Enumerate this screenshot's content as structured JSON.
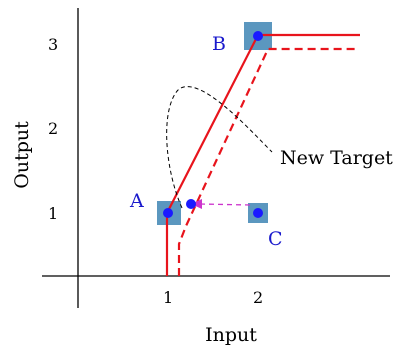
{
  "diagram": {
    "x_axis": {
      "label": "Input",
      "ticks": [
        "1",
        "2"
      ]
    },
    "y_axis": {
      "label": "Output",
      "ticks": [
        "1",
        "2",
        "3"
      ]
    },
    "points": [
      {
        "label": "A",
        "x": 1.0,
        "y": 1.0
      },
      {
        "label": "B",
        "x": 2.0,
        "y": 3.0
      },
      {
        "label": "C",
        "x": 2.0,
        "y": 1.0
      }
    ],
    "annotation": "New Target",
    "colors": {
      "curve": "#e8141c",
      "marker_fill": "#1a1aff",
      "marker_box": "#5b97bf",
      "label_text": "#1a1acc",
      "arrow": "#cc33cc",
      "annotation_curve": "#000000"
    }
  }
}
